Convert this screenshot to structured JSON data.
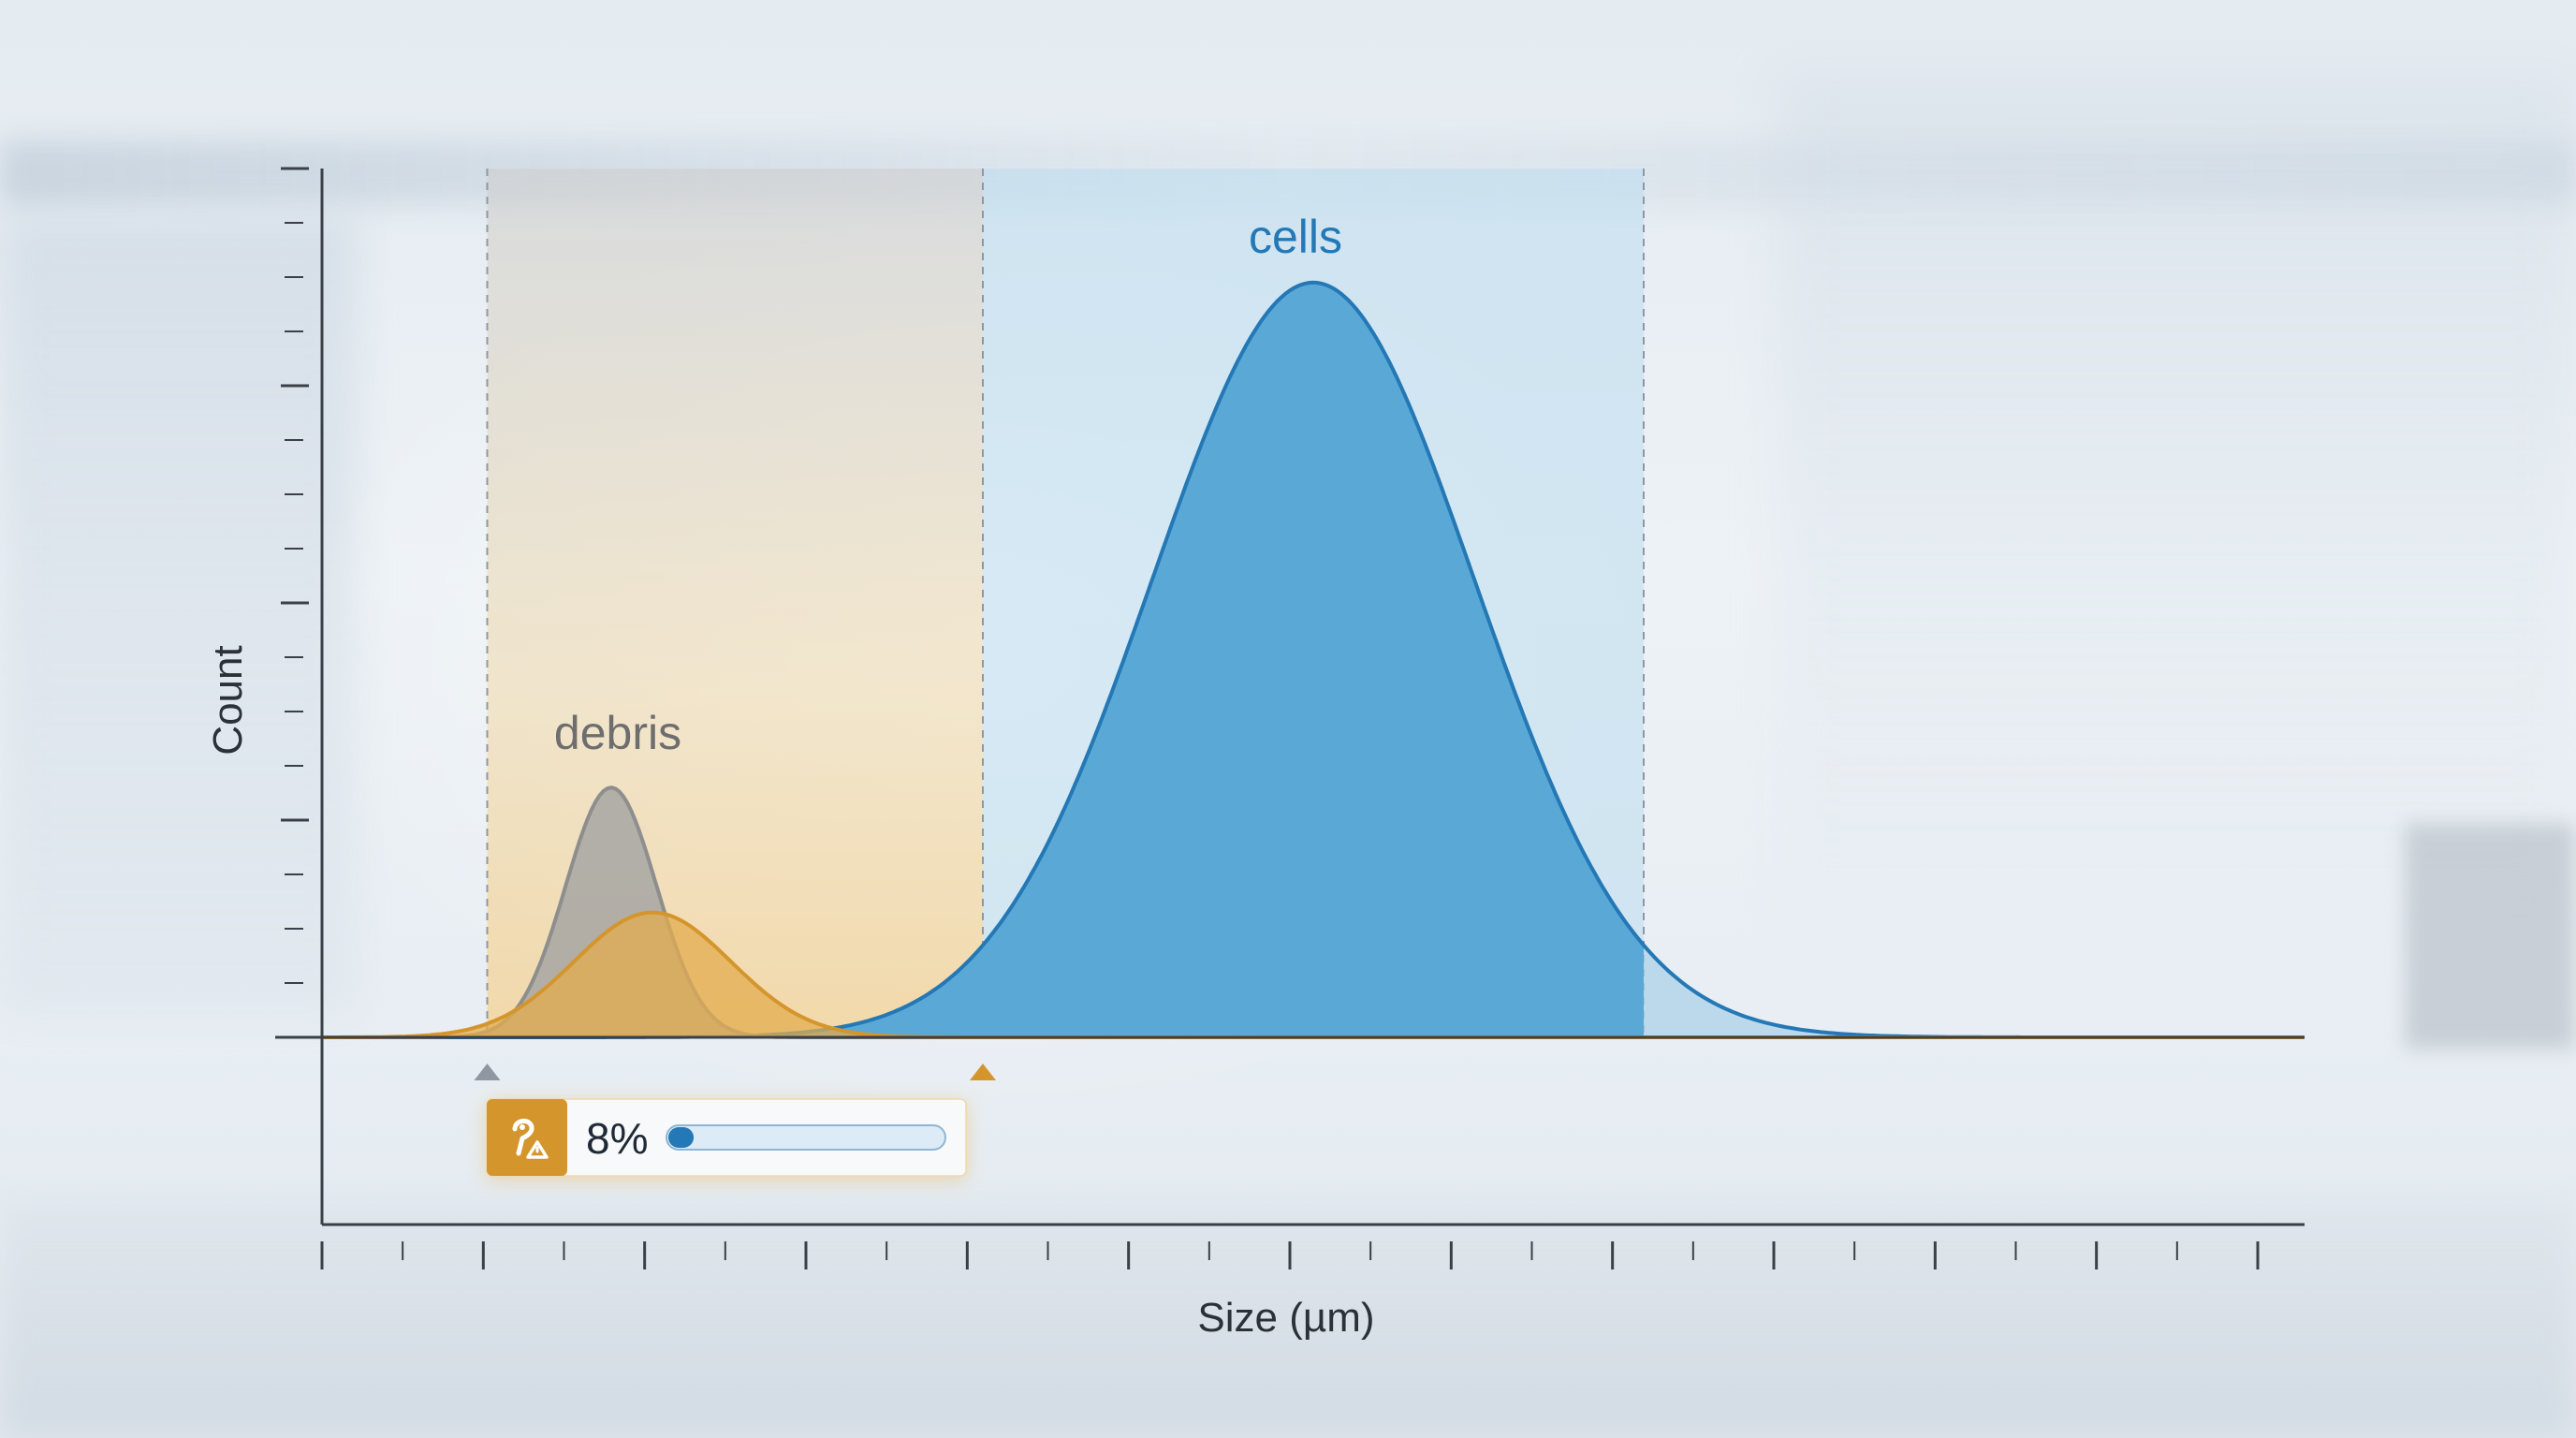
{
  "chart_data": {
    "type": "area",
    "title": "",
    "xlabel": "Size (µm)",
    "ylabel": "Count",
    "xlim": [
      0,
      24
    ],
    "ylim": [
      0,
      16
    ],
    "grid": false,
    "series": [
      {
        "key": "debris_gray",
        "label": "debris",
        "center": 3.5,
        "width": 0.55,
        "height": 4.6,
        "color": "#8e8e8e",
        "fill": "#a3a3a3"
      },
      {
        "key": "debris_orange",
        "label": "",
        "center": 4.0,
        "width": 0.95,
        "height": 2.3,
        "color": "#d4952c",
        "fill": "#e3ac4f"
      },
      {
        "key": "cells",
        "label": "cells",
        "center": 12.0,
        "width": 1.95,
        "height": 13.9,
        "color": "#2378b5",
        "fill": "#5aa8d6"
      }
    ],
    "gates": [
      {
        "name": "debris_gate",
        "x0": 2.0,
        "x1": 8.0,
        "color": "#d9a24a"
      },
      {
        "name": "cells_gate",
        "x0": 8.0,
        "x1": 16.0,
        "color": "#bcdcee"
      }
    ]
  },
  "indicator": {
    "icon": "bacteria-warning-icon",
    "value_text": "8%",
    "fraction": 0.08,
    "accent": "#d4952c",
    "bar_color": "#2378b5"
  }
}
